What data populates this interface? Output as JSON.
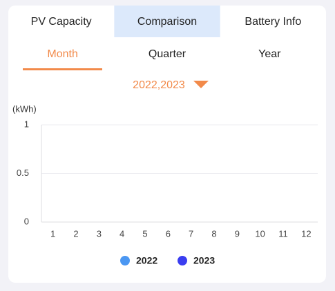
{
  "tabs": {
    "items": [
      "PV Capacity",
      "Comparison",
      "Battery Info"
    ],
    "selected": 1
  },
  "periods": {
    "items": [
      "Month",
      "Quarter",
      "Year"
    ],
    "selected": 0
  },
  "year_selector": "2022,2023",
  "chart_data": {
    "type": "bar",
    "y_label": "(kWh)",
    "categories": [
      "1",
      "2",
      "3",
      "4",
      "5",
      "6",
      "7",
      "8",
      "9",
      "10",
      "11",
      "12"
    ],
    "series": [
      {
        "name": "2022",
        "color": "#4b97f2",
        "values": [
          null,
          null,
          null,
          null,
          null,
          null,
          null,
          null,
          null,
          null,
          null,
          null
        ]
      },
      {
        "name": "2023",
        "color": "#3a3df0",
        "values": [
          null,
          null,
          null,
          null,
          null,
          null,
          null,
          null,
          null,
          null,
          null,
          null
        ]
      }
    ],
    "ylim": [
      0,
      1
    ],
    "yticks": [
      0,
      0.5,
      1
    ],
    "grid": true
  }
}
